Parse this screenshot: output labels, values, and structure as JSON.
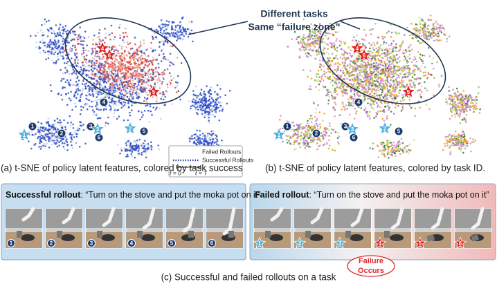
{
  "callout": {
    "line1": "Different tasks",
    "line2": "Same “failure zone”"
  },
  "step_labels": [
    "1",
    "2",
    "3",
    "4",
    "5",
    "6"
  ],
  "legend": {
    "failed": "Failed Rollouts",
    "successful": "Successful Rollouts",
    "t_start": "t = 0",
    "t_end": "t = T"
  },
  "captions": {
    "a": "(a) t-SNE of policy latent features, colored by task success",
    "b": "(b) t-SNE of policy latent features, colored by task ID.",
    "c": "(c) Successful and failed rollouts on a task"
  },
  "panels": {
    "success": {
      "label": "Successful rollout",
      "instruction": ": “Turn on the stove and put the moka pot on it”"
    },
    "failure": {
      "label": "Failed rollout",
      "instruction": ": “Turn on the stove and put the moka pot on it”"
    }
  },
  "failure_note": {
    "line1": "Failure",
    "line2": "Occurs"
  }
}
